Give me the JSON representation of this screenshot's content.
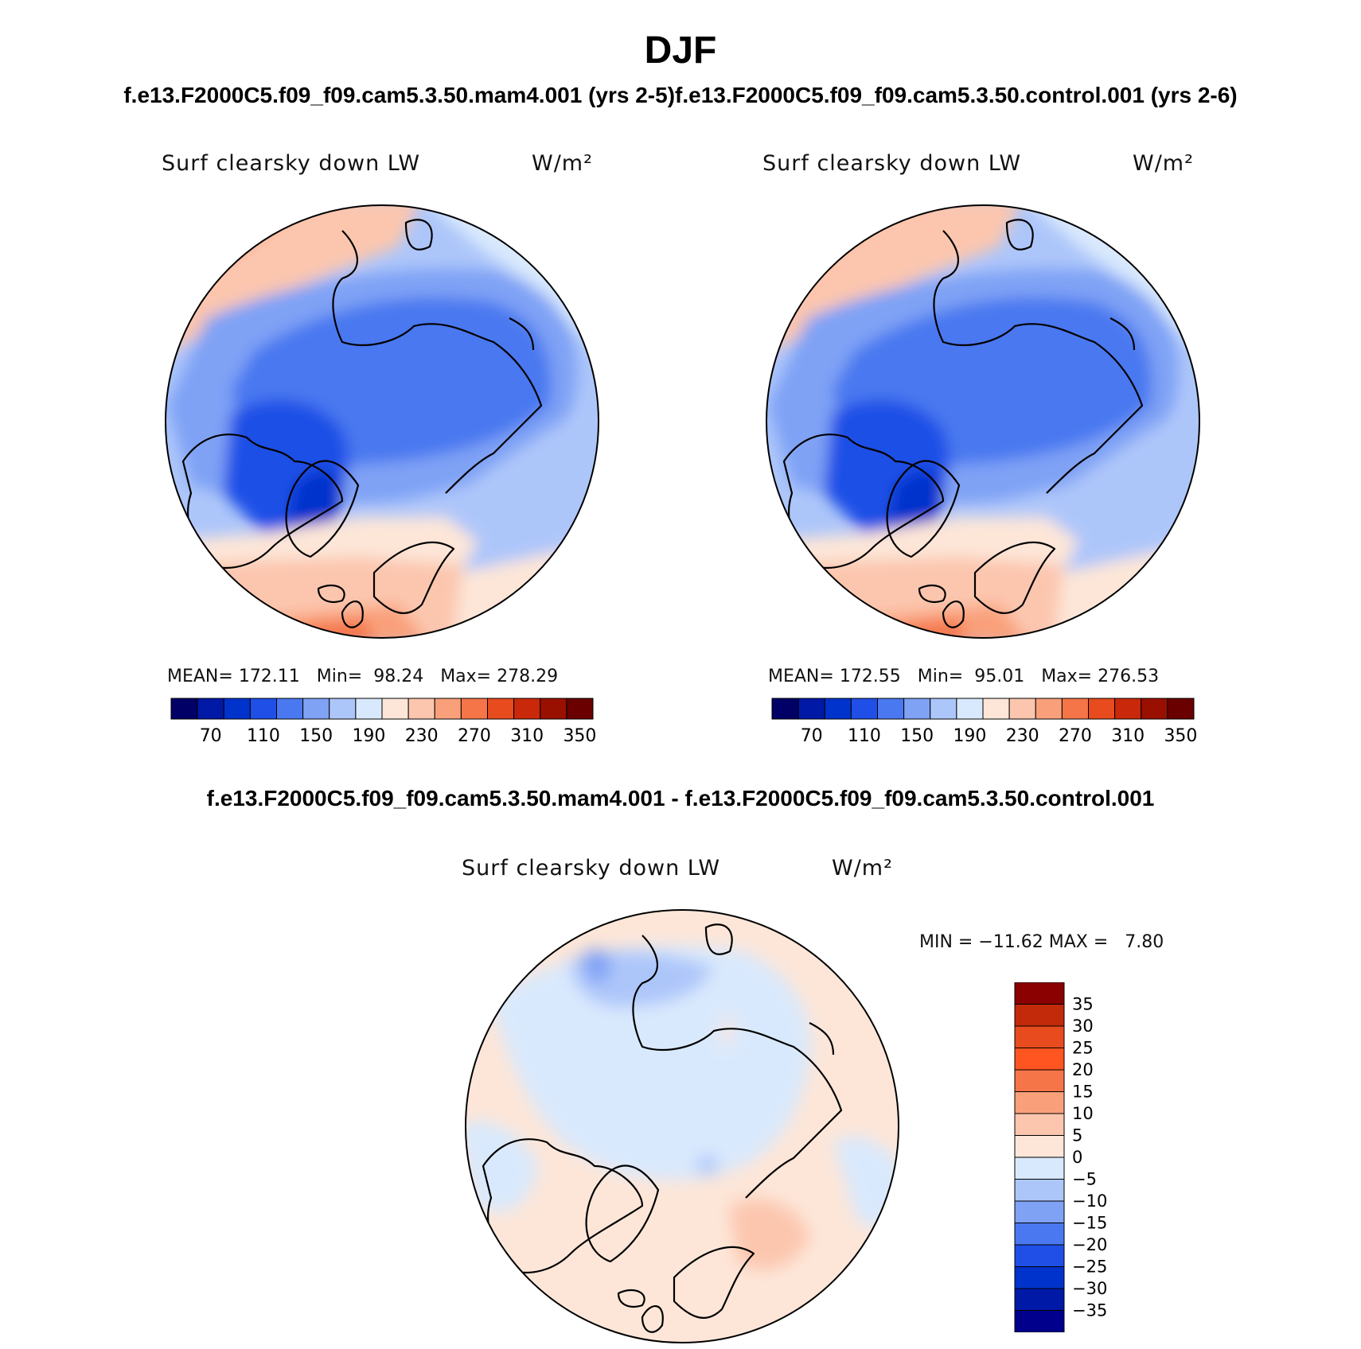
{
  "title": "DJF",
  "subtitle_left": "f.e13.F2000C5.f09_f09.cam5.3.50.mam4.001 (yrs 2-5)",
  "subtitle_right": "f.e13.F2000C5.f09_f09.cam5.3.50.control.001 (yrs 2-6)",
  "diff_title": "f.e13.F2000C5.f09_f09.cam5.3.50.mam4.001 - f.e13.F2000C5.f09_f09.cam5.3.50.control.001",
  "panels": [
    {
      "variable": "Surf clearsky down LW",
      "units": "W/m²",
      "stats": "MEAN= 172.11   Min=  98.24   Max= 278.29"
    },
    {
      "variable": "Surf clearsky down LW",
      "units": "W/m²",
      "stats": "MEAN= 172.55   Min=  95.01   Max= 276.53"
    },
    {
      "variable": "Surf clearsky down LW",
      "units": "W/m²",
      "stats": "MIN = −11.62 MAX =   7.80"
    }
  ],
  "colorbar_abs": {
    "colors": [
      "#000066",
      "#0019a6",
      "#0033cc",
      "#1f4fe6",
      "#4a78f0",
      "#7fa2f5",
      "#adc6fa",
      "#d9e9fd",
      "#fde6d8",
      "#fcc6ae",
      "#f9a07a",
      "#f57548",
      "#e84b1e",
      "#c9290a",
      "#9a1000",
      "#6a0000"
    ],
    "labels": [
      "70",
      "110",
      "150",
      "190",
      "230",
      "270",
      "310",
      "350"
    ]
  },
  "colorbar_diff": {
    "colors": [
      "#00008c",
      "#0019a6",
      "#0033cc",
      "#1f4fe6",
      "#4a78f0",
      "#7fa2f5",
      "#adc6fa",
      "#d9e9fd",
      "#fde6d8",
      "#fcc6ae",
      "#f9a07a",
      "#f57548",
      "#ff5520",
      "#e84b1e",
      "#c22a0a",
      "#8b0000"
    ],
    "labels": [
      "−35",
      "−30",
      "−25",
      "−20",
      "−15",
      "−10",
      "−5",
      "0",
      "5",
      "10",
      "15",
      "20",
      "25",
      "30",
      "35"
    ]
  }
}
